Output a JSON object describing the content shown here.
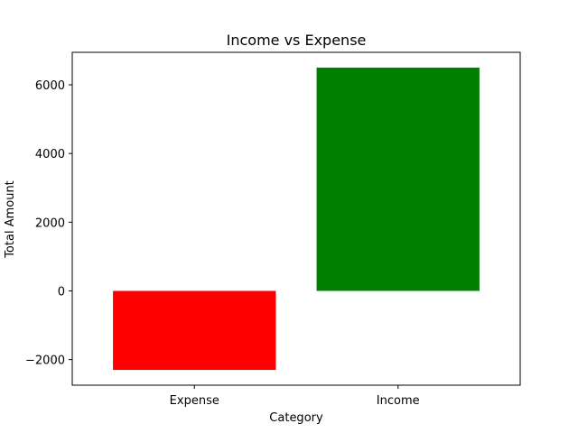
{
  "chart_data": {
    "type": "bar",
    "title": "Income vs Expense",
    "xlabel": "Category",
    "ylabel": "Total Amount",
    "categories": [
      "Expense",
      "Income"
    ],
    "values": [
      -2300,
      6500
    ],
    "colors": [
      "#ff0000",
      "#008000"
    ],
    "ylim": [
      -2745,
      6945
    ],
    "yticks": [
      -2000,
      0,
      2000,
      4000,
      6000
    ],
    "ytick_labels": [
      "−2000",
      "0",
      "2000",
      "4000",
      "6000"
    ],
    "grid": false,
    "legend": false
  }
}
